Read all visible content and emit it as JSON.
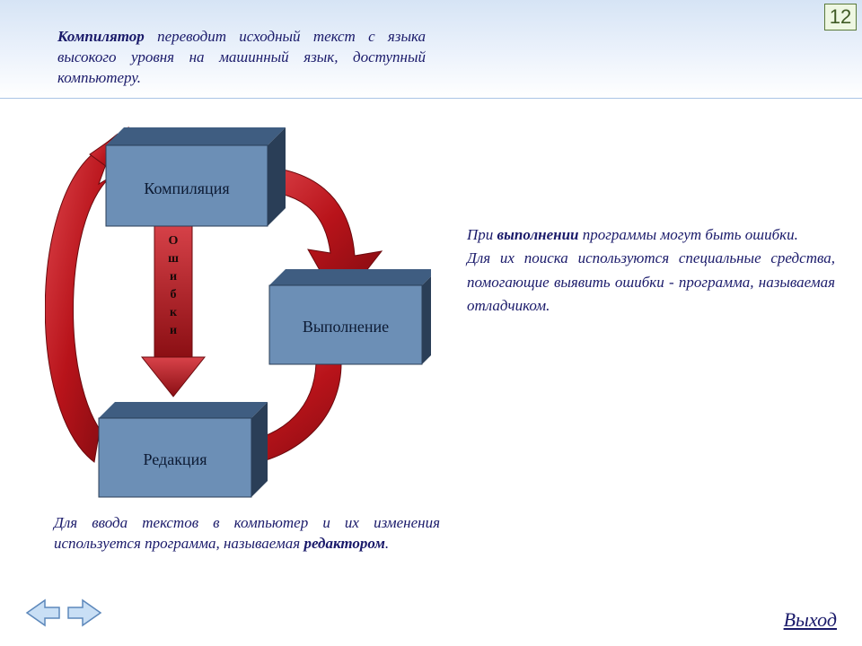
{
  "page_number": "12",
  "top_paragraph": {
    "bold": "Компилятор",
    "rest": " переводит исходный текст с языка высокого уровня на машинный язык, доступный компьютеру."
  },
  "mid_paragraph": {
    "line1a": "При ",
    "line1b": "выполнении",
    "line1c": " программы могут быть ошибки.",
    "line2": "Для их поиска используются специальные средства, помогающие выявить ошибки - программа, называемая отладчиком."
  },
  "bottom_paragraph": {
    "part1": "Для ввода текстов в компьютер и их изменения используется программа, называемая ",
    "bold": "редактором",
    "part2": "."
  },
  "boxes": {
    "compile": "Компиляция",
    "execute": "Выполнение",
    "edit": "Редакция",
    "errors": "О\nш\nи\nб\nк\nи"
  },
  "exit_label": "Выход",
  "colors": {
    "box_face": "#6c8fb6",
    "box_top": "#3f5d81",
    "box_side": "#2a3e57",
    "box_text": "#0c1a33",
    "arrow_red": "#b8131a",
    "arrow_red_light": "#d9434a",
    "arrow_red_dark": "#7d0b10",
    "nav_fill": "#c9dff5",
    "nav_stroke": "#5d88bb",
    "text_color": "#1a1a6a"
  }
}
